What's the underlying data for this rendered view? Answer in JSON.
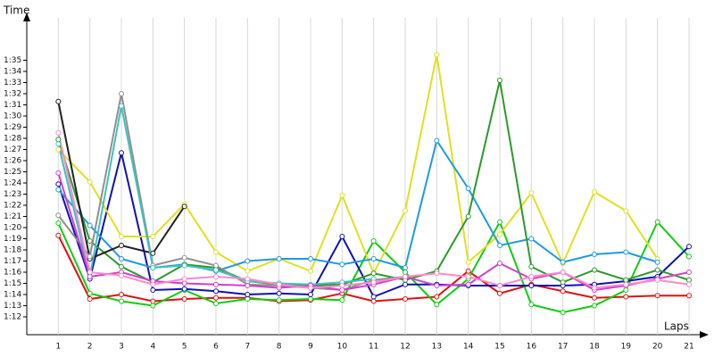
{
  "chart_data": {
    "type": "line",
    "x_label": "Laps",
    "y_label": "Time",
    "x": [
      1,
      2,
      3,
      4,
      5,
      6,
      7,
      8,
      9,
      10,
      11,
      12,
      13,
      14,
      15,
      16,
      17,
      18,
      19,
      20,
      21
    ],
    "xlim": [
      0,
      21
    ],
    "xticks": [
      1,
      2,
      3,
      4,
      5,
      6,
      7,
      8,
      9,
      10,
      11,
      12,
      13,
      14,
      15,
      16,
      17,
      18,
      19,
      20,
      21
    ],
    "ylim": [
      70.4,
      98
    ],
    "yticks": [
      {
        "value": 72,
        "label": "1:12"
      },
      {
        "value": 73,
        "label": "1:13"
      },
      {
        "value": 74,
        "label": "1:14"
      },
      {
        "value": 75,
        "label": "1:15"
      },
      {
        "value": 76,
        "label": "1:16"
      },
      {
        "value": 77,
        "label": "1:17"
      },
      {
        "value": 78,
        "label": "1:18"
      },
      {
        "value": 79,
        "label": "1:19"
      },
      {
        "value": 80,
        "label": "1:20"
      },
      {
        "value": 81,
        "label": "1:21"
      },
      {
        "value": 82,
        "label": "1:22"
      },
      {
        "value": 83,
        "label": "1:23"
      },
      {
        "value": 84,
        "label": "1:24"
      },
      {
        "value": 85,
        "label": "1:25"
      },
      {
        "value": 86,
        "label": "1:26"
      },
      {
        "value": 87,
        "label": "1:27"
      },
      {
        "value": 88,
        "label": "1:28"
      },
      {
        "value": 89,
        "label": "1:29"
      },
      {
        "value": 90,
        "label": "1:30"
      },
      {
        "value": 91,
        "label": "1:31"
      },
      {
        "value": 92,
        "label": "1:32"
      },
      {
        "value": 93,
        "label": "1:33"
      },
      {
        "value": 94,
        "label": "1:34"
      },
      {
        "value": 95,
        "label": "1:35"
      }
    ],
    "grid": true,
    "series": [
      {
        "color": "#e01010",
        "values": [
          79.3,
          73.6,
          74.0,
          73.4,
          73.6,
          73.7,
          73.7,
          73.4,
          73.5,
          74.1,
          73.4,
          73.6,
          73.8,
          76.1,
          74.1,
          74.9,
          74.3,
          73.7,
          73.8,
          73.9,
          73.9
        ]
      },
      {
        "color": "#10cc10",
        "values": [
          80.4,
          74.1,
          73.4,
          73.0,
          74.4,
          73.2,
          73.6,
          73.5,
          73.6,
          73.5,
          78.8,
          76.0,
          73.1,
          75.4,
          80.5,
          73.1,
          72.4,
          73.0,
          74.4,
          80.5,
          77.4
        ]
      },
      {
        "color": "#1010b0",
        "values": [
          83.9,
          75.4,
          86.7,
          74.4,
          74.5,
          74.3,
          74.0,
          74.1,
          74.0,
          79.2,
          73.8,
          74.9,
          74.9,
          74.8,
          74.8,
          74.8,
          74.8,
          74.9,
          75.2,
          75.6,
          78.3
        ]
      },
      {
        "color": "#e0e020",
        "values": [
          87.0,
          84.1,
          79.2,
          79.2,
          82.1,
          77.8,
          76.1,
          77.2,
          76.1,
          82.9,
          75.9,
          81.5,
          95.5,
          76.9,
          79.4,
          83.1,
          76.8,
          83.2,
          81.5,
          77.2,
          null
        ]
      },
      {
        "color": "#1e9be0",
        "values": [
          83.4,
          80.2,
          77.2,
          76.4,
          76.7,
          76.1,
          77.0,
          77.2,
          77.2,
          76.7,
          77.2,
          76.4,
          87.8,
          83.5,
          78.4,
          79.0,
          76.9,
          77.6,
          77.8,
          76.9,
          null
        ]
      },
      {
        "color": "#2a9a2a",
        "values": [
          87.9,
          78.8,
          76.5,
          75.1,
          76.7,
          76.4,
          75.2,
          74.9,
          74.8,
          74.9,
          75.9,
          75.3,
          76.1,
          81.0,
          93.2,
          76.5,
          75.1,
          76.2,
          75.3,
          76.2,
          75.3
        ]
      },
      {
        "color": "#202020",
        "values": [
          91.3,
          77.2,
          78.4,
          77.7,
          81.9,
          null,
          null,
          null,
          null,
          null,
          null,
          null,
          null,
          null,
          null,
          null,
          null,
          null,
          null,
          null,
          null
        ]
      },
      {
        "color": "#909090",
        "values": [
          81.1,
          77.4,
          92.0,
          76.6,
          77.3,
          76.6,
          74.9,
          74.8,
          74.6,
          74.4,
          75.3,
          75.6,
          null,
          null,
          null,
          null,
          null,
          null,
          null,
          null,
          null
        ]
      },
      {
        "color": "#40c0c0",
        "values": [
          87.5,
          75.6,
          90.9,
          76.4,
          76.6,
          76.2,
          75.2,
          75.0,
          74.9,
          75.1,
          75.4,
          null,
          null,
          null,
          null,
          null,
          null,
          null,
          null,
          null,
          null
        ]
      },
      {
        "color": "#d040d0",
        "values": [
          84.9,
          75.6,
          76.0,
          75.2,
          75.0,
          74.9,
          74.8,
          74.6,
          74.8,
          74.4,
          74.9,
          75.6,
          74.8,
          74.9,
          76.8,
          75.4,
          76.0,
          74.4,
          74.8,
          75.4,
          76.0
        ]
      },
      {
        "color": "#ff88cc",
        "values": [
          88.5,
          76.0,
          75.7,
          74.9,
          75.4,
          75.6,
          75.4,
          74.9,
          74.6,
          74.8,
          75.1,
          75.6,
          75.9,
          75.6,
          74.8,
          75.6,
          76.0,
          74.6,
          74.9,
          75.3,
          74.9
        ]
      }
    ]
  }
}
